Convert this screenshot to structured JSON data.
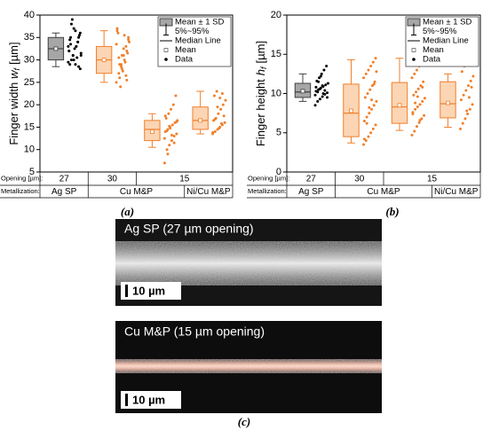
{
  "chart_data": [
    {
      "type": "box",
      "panel_label": "(a)",
      "ylabel": {
        "text": "Finger width",
        "symbol": "w",
        "subscript": "f",
        "unit": "[µm]"
      },
      "ylim": [
        5,
        40
      ],
      "yticks": [
        5,
        10,
        15,
        20,
        25,
        30,
        35,
        40
      ],
      "legend": [
        "Mean ± 1 SD",
        "5%~95%",
        "Median Line",
        "Mean",
        "Data"
      ],
      "legend_corner": "upper right",
      "row_headers": [
        "Opening [µm]:",
        "Metallization:"
      ],
      "openings": [
        "27",
        "30",
        "15",
        null
      ],
      "metallizations": [
        "Ag SP",
        "Cu M&P",
        null,
        "Ni/Cu M&P"
      ],
      "groups": [
        {
          "box_color": "#a6a6a6",
          "edge_color": "#404040",
          "point_color": "#000000",
          "whisker": [
            28.5,
            36
          ],
          "box": [
            30,
            35
          ],
          "median": 32.5,
          "mean": 32.5,
          "points": [
            33,
            35,
            31,
            29,
            34,
            36,
            32,
            30,
            37,
            33,
            28.5,
            31.5,
            34.5,
            39,
            32.5,
            30.5,
            35.5,
            29.5,
            33.5,
            31,
            36.5,
            34,
            28,
            32,
            38,
            30,
            33,
            35,
            31,
            29
          ]
        },
        {
          "box_color": "#fcd5b4",
          "edge_color": "#f07f2a",
          "point_color": "#f07f2a",
          "whisker": [
            25,
            36.5
          ],
          "box": [
            27,
            33
          ],
          "median": 30,
          "mean": 30,
          "points": [
            25,
            27,
            29,
            31,
            33,
            35,
            37,
            26,
            28,
            30,
            32,
            34,
            36,
            24,
            27.5,
            29.5,
            31.5,
            33.5,
            30.5,
            28.5,
            32.5,
            26.5,
            34.5,
            36.5,
            29,
            31,
            35.5,
            25.5
          ]
        },
        {
          "box_color": "#fcd5b4",
          "edge_color": "#f07f2a",
          "point_color": "#f07f2a",
          "whisker": [
            10.5,
            18
          ],
          "box": [
            12,
            16.5
          ],
          "median": 14.5,
          "mean": 14,
          "points": [
            7,
            10,
            11,
            12,
            13,
            13.5,
            14,
            14.5,
            15,
            15.5,
            16,
            16.5,
            17,
            18,
            19,
            20,
            22,
            12.5,
            14.2,
            15.2,
            13.2,
            11.5,
            16.2,
            17.5,
            9,
            14.8
          ]
        },
        {
          "box_color": "#fcd5b4",
          "edge_color": "#f07f2a",
          "point_color": "#f07f2a",
          "whisker": [
            13.5,
            23
          ],
          "box": [
            14.5,
            19.5
          ],
          "median": 16.5,
          "mean": 16.5,
          "points": [
            13.5,
            14,
            14.5,
            15,
            15.5,
            16,
            16.5,
            17,
            18,
            19,
            20,
            21,
            22,
            23,
            14.8,
            15.8,
            17.5,
            13.8,
            16.8,
            19.5,
            21.5,
            22.5
          ]
        }
      ]
    },
    {
      "type": "box",
      "panel_label": "(b)",
      "ylabel": {
        "text": "Finger height",
        "symbol": "h",
        "subscript": "f",
        "unit": "[µm]"
      },
      "ylim": [
        0,
        20
      ],
      "yticks": [
        0,
        5,
        10,
        15,
        20
      ],
      "legend": [
        "Mean ± 1 SD",
        "5%~95%",
        "Median Line",
        "Mean",
        "Data"
      ],
      "legend_corner": "upper right",
      "row_headers": [
        "Opening [µm]:",
        "Metallization:"
      ],
      "openings": [
        "27",
        "30",
        "15",
        null
      ],
      "metallizations": [
        "Ag SP",
        "Cu M&P",
        null,
        "Ni/Cu M&P"
      ],
      "groups": [
        {
          "box_color": "#a6a6a6",
          "edge_color": "#404040",
          "point_color": "#000000",
          "whisker": [
            9,
            12.5
          ],
          "box": [
            9.5,
            11.3
          ],
          "median": 10.2,
          "mean": 10.3,
          "points": [
            8.5,
            9,
            9.3,
            9.6,
            9.9,
            10.1,
            10.3,
            10.5,
            10.7,
            10.9,
            11.1,
            11.3,
            11.6,
            12,
            12.5,
            13,
            13.5,
            9.8,
            10.2,
            10.6,
            11,
            10.4,
            9.5,
            10.8,
            11.5,
            12.2,
            10
          ]
        },
        {
          "box_color": "#fcd5b4",
          "edge_color": "#f07f2a",
          "point_color": "#f07f2a",
          "whisker": [
            3.7,
            14.3
          ],
          "box": [
            4.5,
            11.2
          ],
          "median": 7.5,
          "mean": 7.8,
          "points": [
            3.5,
            4,
            4.5,
            5,
            5.5,
            6,
            6.5,
            7,
            7.5,
            8,
            8.5,
            9,
            9.5,
            10,
            10.5,
            11,
            11.5,
            12,
            12.5,
            13,
            13.5,
            14,
            14.5,
            4.2,
            6.2,
            8.2,
            9.2,
            11.2,
            12.8
          ]
        },
        {
          "box_color": "#fcd5b4",
          "edge_color": "#f07f2a",
          "point_color": "#f07f2a",
          "whisker": [
            5.3,
            14.5
          ],
          "box": [
            6.2,
            11.4
          ],
          "median": 8.3,
          "mean": 8.5,
          "points": [
            4.7,
            5.2,
            5.8,
            6.3,
            6.8,
            7.2,
            7.6,
            8,
            8.3,
            8.6,
            9,
            9.4,
            9.8,
            10.2,
            10.6,
            11,
            11.5,
            12,
            12.5,
            13,
            13.5,
            14,
            14.5,
            7.4,
            8.8,
            9.6,
            6.6,
            10.8
          ]
        },
        {
          "box_color": "#fcd5b4",
          "edge_color": "#f07f2a",
          "point_color": "#f07f2a",
          "whisker": [
            5.7,
            12.5
          ],
          "box": [
            6.9,
            11.5
          ],
          "median": 8.7,
          "mean": 8.8,
          "points": [
            5.5,
            6.2,
            6.8,
            7.4,
            8,
            8.6,
            9.2,
            9.8,
            10.4,
            11,
            11.6,
            12.2,
            12.8,
            13.5,
            7.8,
            9.5,
            10.8
          ]
        }
      ]
    }
  ],
  "micrographs": {
    "panel_label": "(c)",
    "images": [
      {
        "caption": "Ag SP (27 µm opening)",
        "scale_bar": "10 µm"
      },
      {
        "caption": "Cu M&P (15 µm opening)",
        "scale_bar": "10 µm"
      }
    ]
  }
}
